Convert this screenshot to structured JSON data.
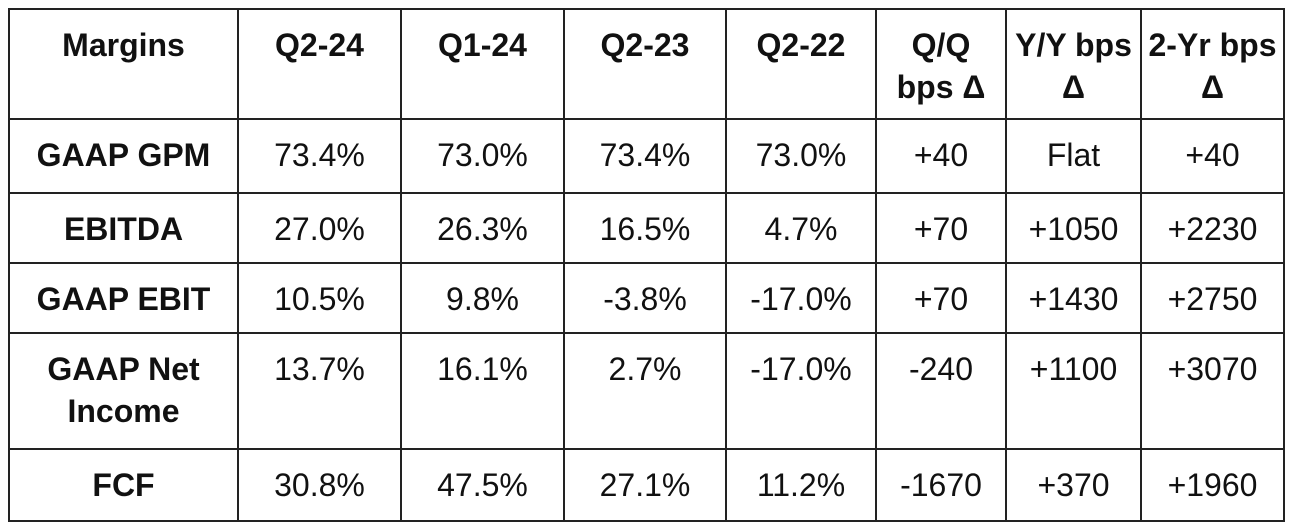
{
  "table": {
    "header": [
      "Margins",
      "Q2-24",
      "Q1-24",
      "Q2-23",
      "Q2-22",
      "Q/Q bps Δ",
      "Y/Y bps Δ",
      "2-Yr bps Δ"
    ],
    "rows": [
      [
        "GAAP GPM",
        "73.4%",
        "73.0%",
        "73.4%",
        "73.0%",
        "+40",
        "Flat",
        "+40"
      ],
      [
        "EBITDA",
        "27.0%",
        "26.3%",
        "16.5%",
        "4.7%",
        "+70",
        "+1050",
        "+2230"
      ],
      [
        "GAAP EBIT",
        "10.5%",
        "9.8%",
        "-3.8%",
        "-17.0%",
        "+70",
        "+1430",
        "+2750"
      ],
      [
        "GAAP Net Income",
        "13.7%",
        "16.1%",
        "2.7%",
        "-17.0%",
        "-240",
        "+1100",
        "+3070"
      ],
      [
        "FCF",
        "30.8%",
        "47.5%",
        "27.1%",
        "11.2%",
        "-1670",
        "+370",
        "+1960"
      ]
    ]
  }
}
